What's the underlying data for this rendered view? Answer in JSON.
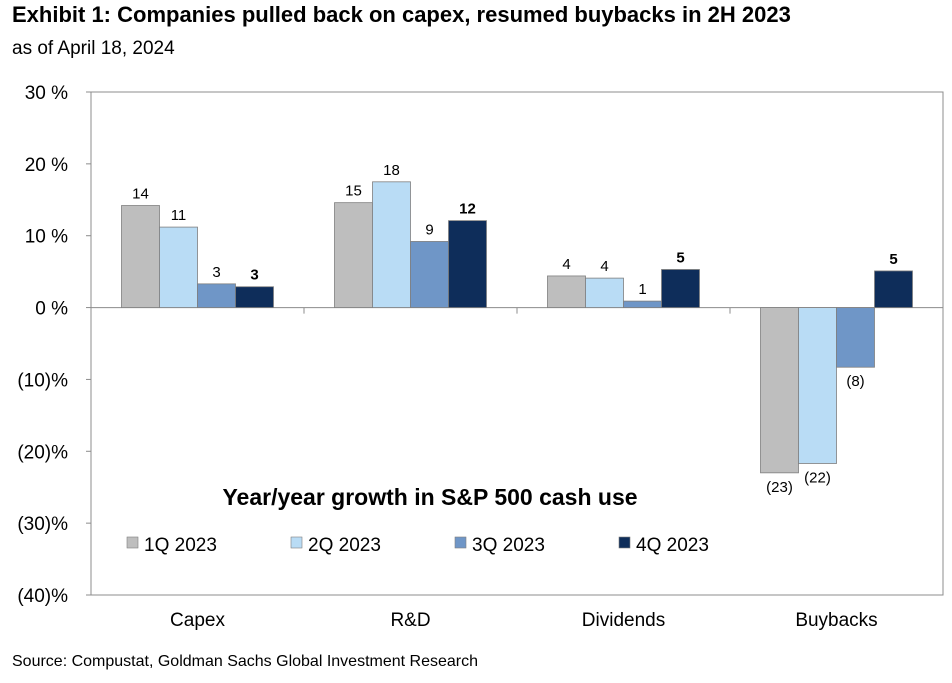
{
  "header": {
    "title": "Exhibit 1: Companies pulled back on capex, resumed buybacks in 2H 2023",
    "subtitle": "as of April 18, 2024"
  },
  "footer": {
    "source": "Source: Compustat, Goldman Sachs Global Investment Research"
  },
  "chart_data": {
    "type": "bar",
    "title": "Year/year growth in S&P 500 cash use",
    "categories": [
      "Capex",
      "R&D",
      "Dividends",
      "Buybacks"
    ],
    "series": [
      {
        "name": "1Q 2023",
        "color": "#bebebe",
        "values": [
          14.2,
          14.6,
          4.4,
          -23.0
        ],
        "labels": [
          "14",
          "15",
          "4",
          "(23)"
        ],
        "label_bold": false
      },
      {
        "name": "2Q 2023",
        "color": "#b9dcf5",
        "values": [
          11.2,
          17.5,
          4.1,
          -21.7
        ],
        "labels": [
          "11",
          "18",
          "4",
          "(22)"
        ],
        "label_bold": false
      },
      {
        "name": "3Q 2023",
        "color": "#6f96c7",
        "values": [
          3.3,
          9.2,
          0.9,
          -8.3
        ],
        "labels": [
          "3",
          "9",
          "1",
          "(8)"
        ],
        "label_bold": false
      },
      {
        "name": "4Q 2023",
        "color": "#0e2d5a",
        "values": [
          2.9,
          12.1,
          5.3,
          5.1
        ],
        "labels": [
          "3",
          "12",
          "5",
          "5"
        ],
        "label_bold": true
      }
    ],
    "yticks": [
      30,
      20,
      10,
      0,
      -10,
      -20,
      -30,
      -40
    ],
    "ytick_labels": [
      "30 %",
      "20 %",
      "10 %",
      "0 %",
      "(10)%",
      "(20)%",
      "(30)%",
      "(40)%"
    ],
    "ylim": [
      -40,
      30
    ],
    "grid": false,
    "legend_placement": "bottom-left inside plot"
  }
}
